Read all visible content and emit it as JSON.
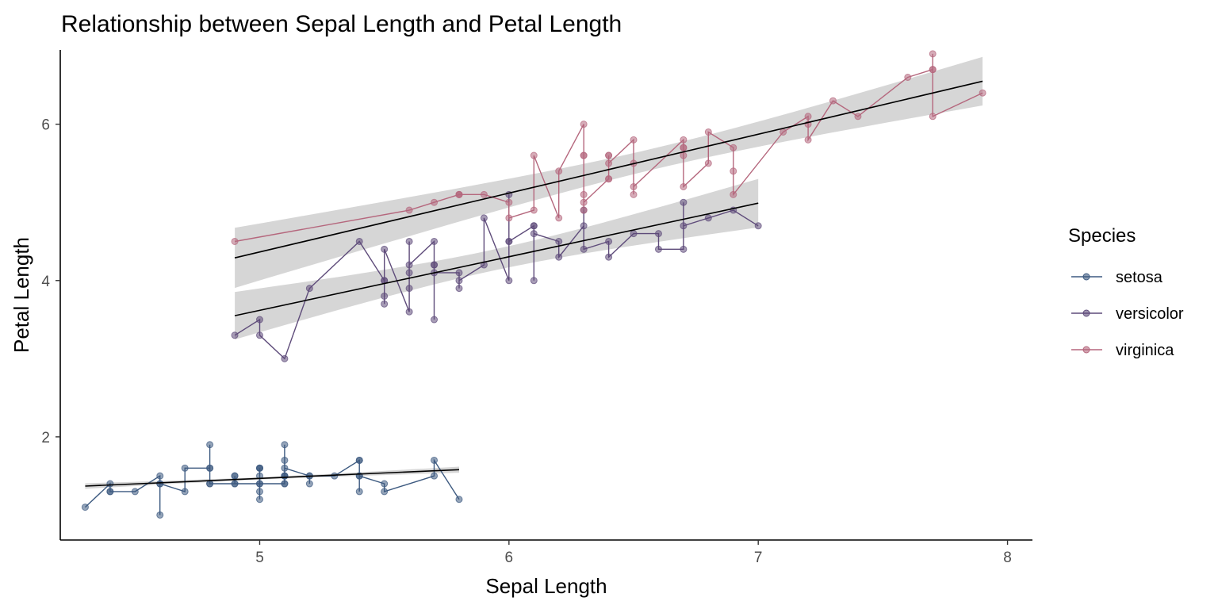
{
  "chart_data": {
    "type": "scatter",
    "title": "Relationship between Sepal Length and Petal Length",
    "xlabel": "Sepal Length",
    "ylabel": "Petal Length",
    "xlim": [
      4.2,
      8.1
    ],
    "ylim": [
      0.68,
      6.95
    ],
    "x_ticks": [
      5,
      6,
      7,
      8
    ],
    "y_ticks": [
      2,
      4,
      6
    ],
    "grid": false,
    "legend": {
      "title": "Species",
      "position": "right"
    },
    "series": [
      {
        "name": "setosa",
        "color": "#3d5a80",
        "points": [
          [
            5.1,
            1.4
          ],
          [
            4.9,
            1.4
          ],
          [
            4.7,
            1.3
          ],
          [
            4.6,
            1.5
          ],
          [
            5.0,
            1.4
          ],
          [
            5.4,
            1.7
          ],
          [
            4.6,
            1.4
          ],
          [
            5.0,
            1.5
          ],
          [
            4.4,
            1.4
          ],
          [
            4.9,
            1.5
          ],
          [
            5.4,
            1.5
          ],
          [
            4.8,
            1.6
          ],
          [
            4.8,
            1.4
          ],
          [
            4.3,
            1.1
          ],
          [
            5.8,
            1.2
          ],
          [
            5.7,
            1.5
          ],
          [
            5.4,
            1.3
          ],
          [
            5.1,
            1.4
          ],
          [
            5.7,
            1.7
          ],
          [
            5.1,
            1.5
          ],
          [
            5.4,
            1.7
          ],
          [
            5.1,
            1.5
          ],
          [
            4.6,
            1.0
          ],
          [
            5.1,
            1.7
          ],
          [
            4.8,
            1.9
          ],
          [
            5.0,
            1.6
          ],
          [
            5.0,
            1.6
          ],
          [
            5.2,
            1.5
          ],
          [
            5.2,
            1.4
          ],
          [
            4.7,
            1.6
          ],
          [
            4.8,
            1.6
          ],
          [
            5.4,
            1.5
          ],
          [
            5.2,
            1.5
          ],
          [
            5.5,
            1.4
          ],
          [
            4.9,
            1.5
          ],
          [
            5.0,
            1.2
          ],
          [
            5.5,
            1.3
          ],
          [
            4.9,
            1.4
          ],
          [
            4.4,
            1.3
          ],
          [
            5.1,
            1.5
          ],
          [
            5.0,
            1.3
          ],
          [
            4.5,
            1.3
          ],
          [
            4.4,
            1.3
          ],
          [
            5.0,
            1.6
          ],
          [
            5.1,
            1.9
          ],
          [
            4.8,
            1.4
          ],
          [
            5.1,
            1.6
          ],
          [
            4.6,
            1.4
          ],
          [
            5.3,
            1.5
          ],
          [
            5.0,
            1.4
          ]
        ],
        "trend": {
          "from": [
            4.3,
            1.37
          ],
          "to": [
            5.8,
            1.58
          ]
        }
      },
      {
        "name": "versicolor",
        "color": "#5e4b7a",
        "points": [
          [
            7.0,
            4.7
          ],
          [
            6.4,
            4.5
          ],
          [
            6.9,
            4.9
          ],
          [
            5.5,
            4.0
          ],
          [
            6.5,
            4.6
          ],
          [
            5.7,
            4.5
          ],
          [
            6.3,
            4.7
          ],
          [
            4.9,
            3.3
          ],
          [
            6.6,
            4.6
          ],
          [
            5.2,
            3.9
          ],
          [
            5.0,
            3.5
          ],
          [
            5.9,
            4.2
          ],
          [
            6.0,
            4.0
          ],
          [
            6.1,
            4.7
          ],
          [
            5.6,
            3.6
          ],
          [
            6.7,
            4.4
          ],
          [
            5.6,
            4.5
          ],
          [
            5.8,
            4.1
          ],
          [
            6.2,
            4.5
          ],
          [
            5.6,
            3.9
          ],
          [
            5.9,
            4.8
          ],
          [
            6.1,
            4.0
          ],
          [
            6.3,
            4.9
          ],
          [
            6.1,
            4.7
          ],
          [
            6.4,
            4.3
          ],
          [
            6.6,
            4.4
          ],
          [
            6.8,
            4.8
          ],
          [
            6.7,
            5.0
          ],
          [
            6.0,
            4.5
          ],
          [
            5.7,
            3.5
          ],
          [
            5.5,
            3.8
          ],
          [
            5.5,
            3.7
          ],
          [
            5.8,
            3.9
          ],
          [
            6.0,
            5.1
          ],
          [
            5.4,
            4.5
          ],
          [
            6.0,
            4.5
          ],
          [
            6.7,
            4.7
          ],
          [
            6.3,
            4.4
          ],
          [
            5.6,
            4.1
          ],
          [
            5.5,
            4.0
          ],
          [
            5.5,
            4.4
          ],
          [
            6.1,
            4.6
          ],
          [
            5.8,
            4.0
          ],
          [
            5.0,
            3.3
          ],
          [
            5.6,
            4.2
          ],
          [
            5.7,
            4.2
          ],
          [
            5.7,
            4.2
          ],
          [
            6.2,
            4.3
          ],
          [
            5.1,
            3.0
          ],
          [
            5.7,
            4.1
          ]
        ],
        "trend": {
          "from": [
            4.9,
            3.55
          ],
          "to": [
            7.0,
            4.99
          ]
        }
      },
      {
        "name": "virginica",
        "color": "#b5677d",
        "points": [
          [
            6.3,
            6.0
          ],
          [
            5.8,
            5.1
          ],
          [
            7.1,
            5.9
          ],
          [
            6.3,
            5.6
          ],
          [
            6.5,
            5.8
          ],
          [
            7.6,
            6.6
          ],
          [
            4.9,
            4.5
          ],
          [
            7.3,
            6.3
          ],
          [
            6.7,
            5.8
          ],
          [
            7.2,
            6.1
          ],
          [
            6.5,
            5.1
          ],
          [
            6.4,
            5.3
          ],
          [
            6.8,
            5.5
          ],
          [
            5.7,
            5.0
          ],
          [
            5.8,
            5.1
          ],
          [
            6.4,
            5.3
          ],
          [
            6.5,
            5.5
          ],
          [
            7.7,
            6.7
          ],
          [
            7.7,
            6.9
          ],
          [
            6.0,
            5.0
          ],
          [
            6.9,
            5.7
          ],
          [
            5.6,
            4.9
          ],
          [
            7.7,
            6.7
          ],
          [
            6.3,
            4.9
          ],
          [
            6.7,
            5.7
          ],
          [
            7.2,
            6.0
          ],
          [
            6.2,
            4.8
          ],
          [
            6.1,
            4.9
          ],
          [
            6.4,
            5.6
          ],
          [
            7.2,
            5.8
          ],
          [
            7.4,
            6.1
          ],
          [
            7.9,
            6.4
          ],
          [
            6.4,
            5.6
          ],
          [
            6.3,
            5.1
          ],
          [
            6.1,
            5.6
          ],
          [
            7.7,
            6.1
          ],
          [
            6.3,
            5.6
          ],
          [
            6.4,
            5.5
          ],
          [
            6.0,
            4.8
          ],
          [
            6.9,
            5.4
          ],
          [
            6.7,
            5.6
          ],
          [
            6.9,
            5.1
          ],
          [
            5.8,
            5.1
          ],
          [
            6.8,
            5.9
          ],
          [
            6.7,
            5.7
          ],
          [
            6.7,
            5.2
          ],
          [
            6.3,
            5.0
          ],
          [
            6.5,
            5.2
          ],
          [
            6.2,
            5.4
          ],
          [
            5.9,
            5.1
          ]
        ],
        "trend": {
          "from": [
            4.9,
            4.29
          ],
          "to": [
            7.9,
            6.55
          ]
        }
      }
    ]
  }
}
